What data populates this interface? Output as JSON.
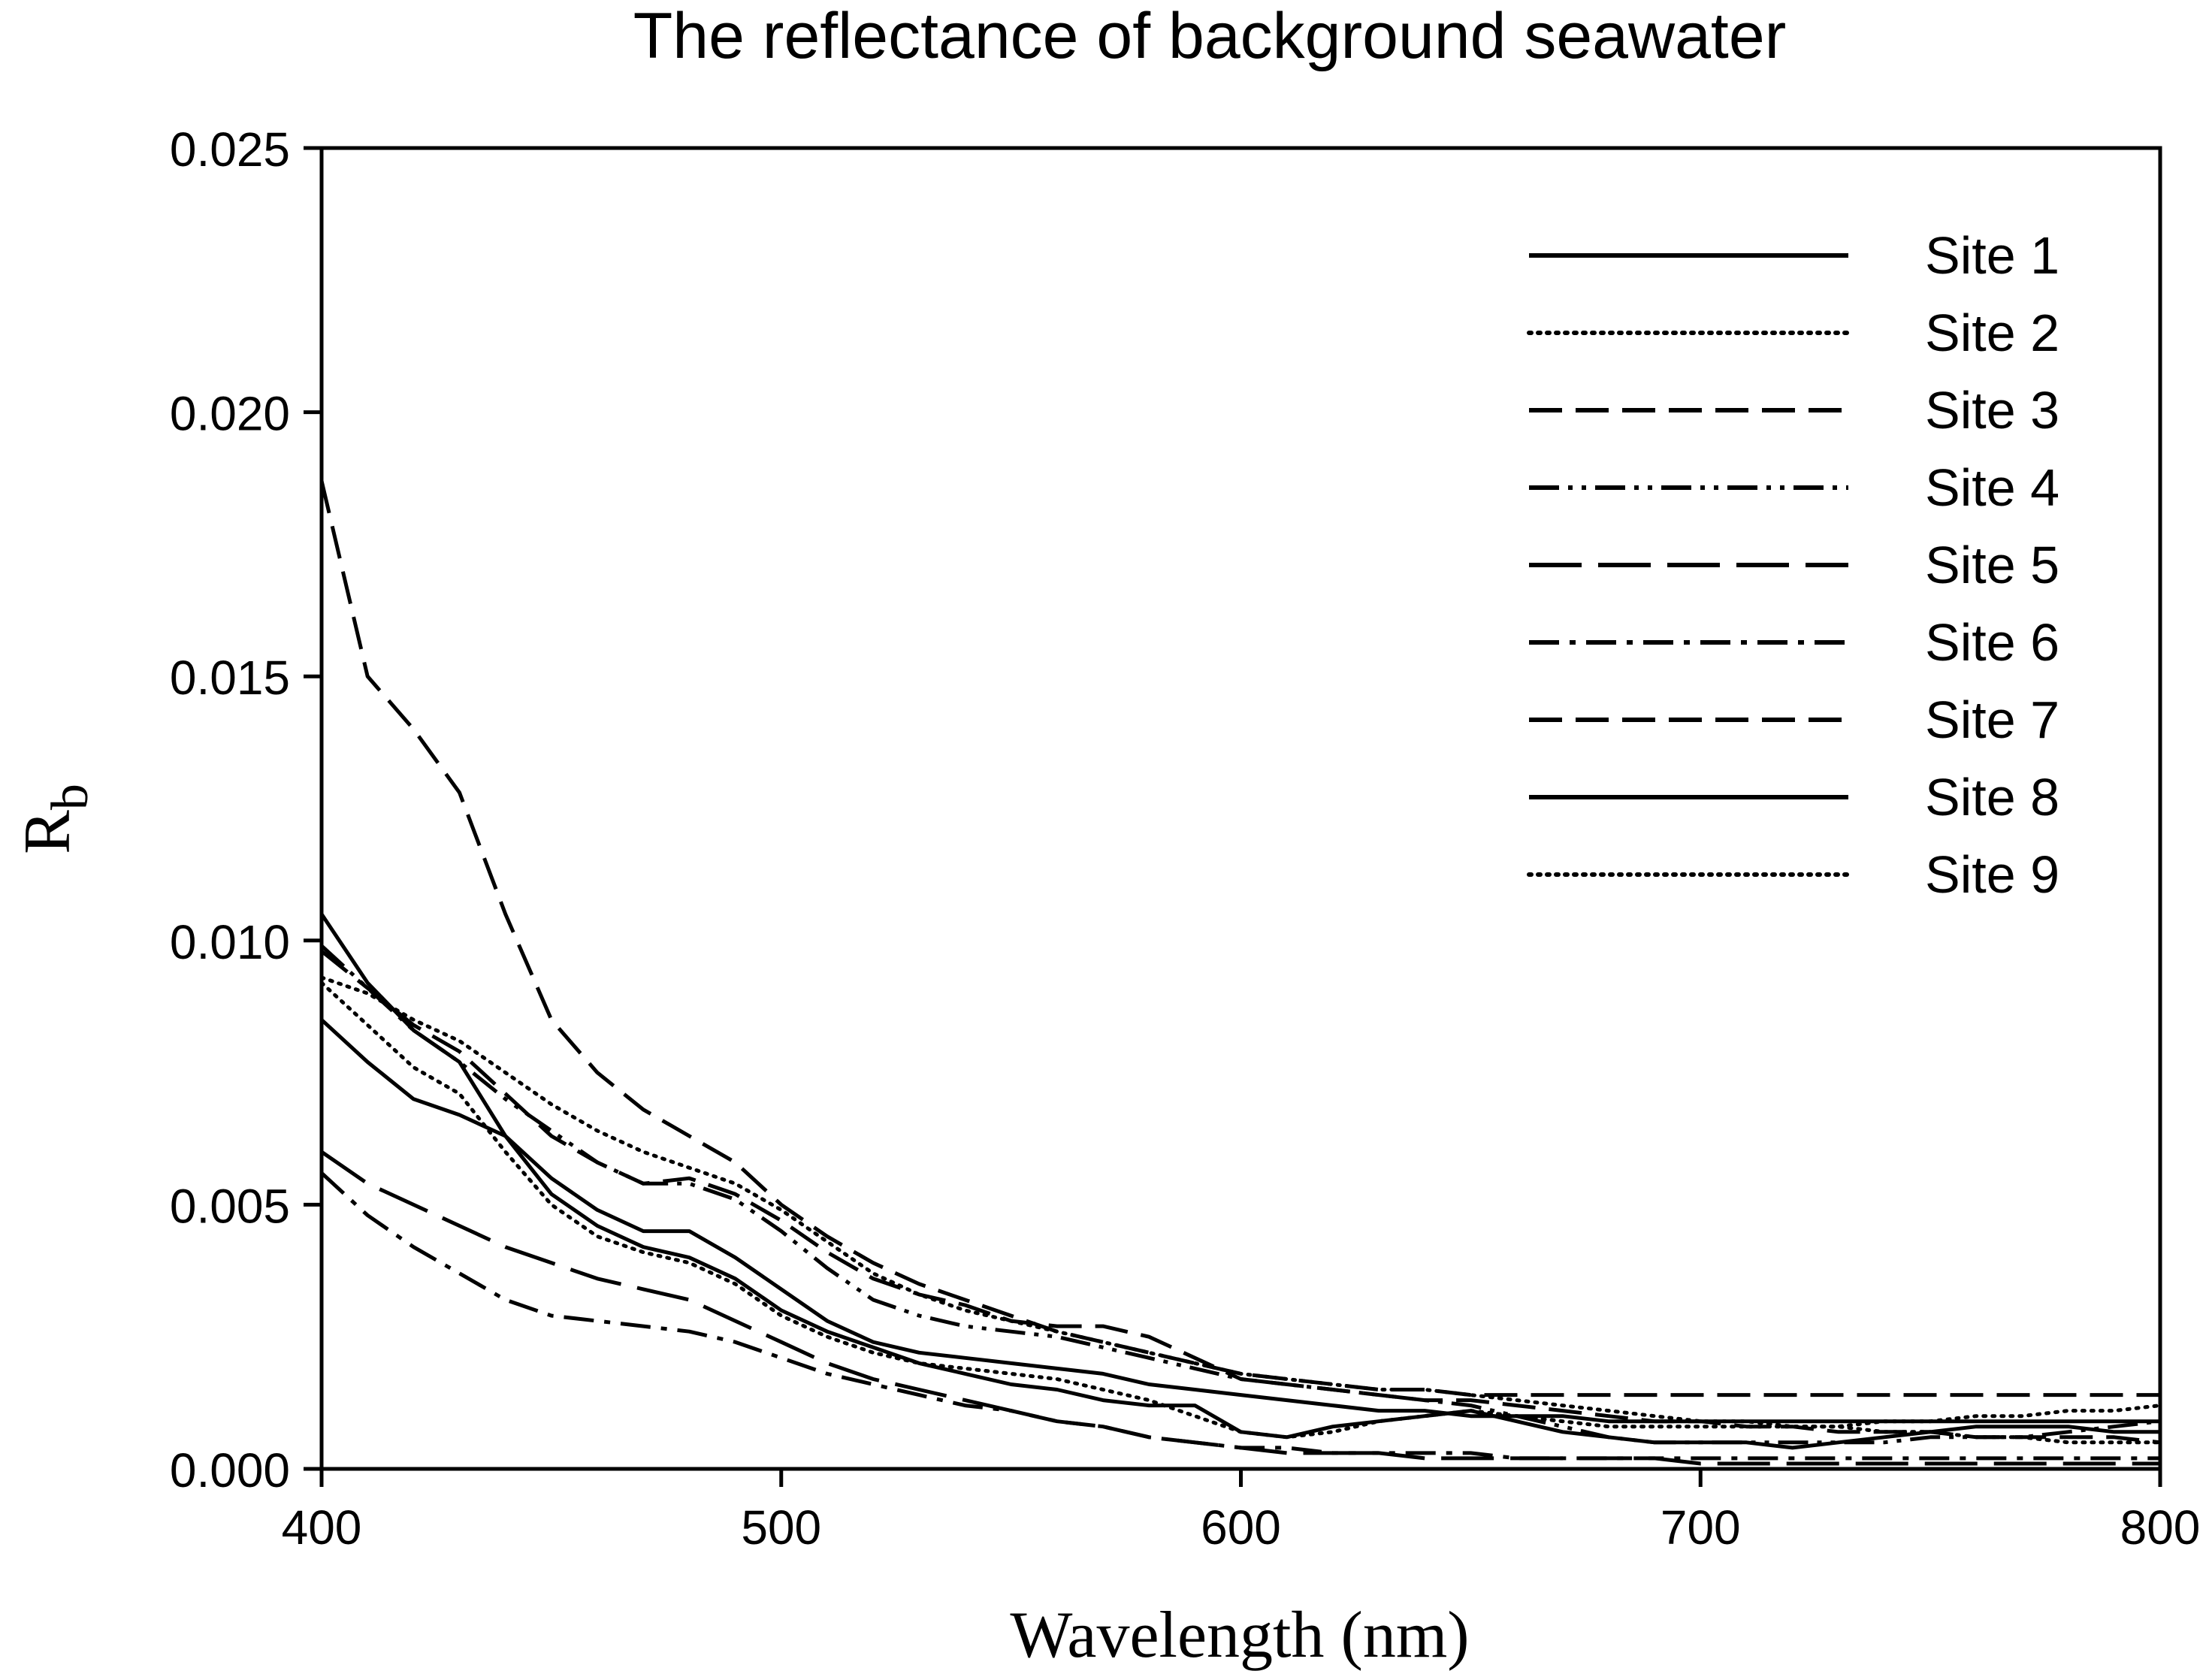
{
  "chart_data": {
    "type": "line",
    "title": "The reflectance of background seawater",
    "xlabel": "Wavelength (nm)",
    "ylabel_main": "R",
    "ylabel_sub": "b",
    "xlim": [
      400,
      800
    ],
    "ylim": [
      0,
      0.025
    ],
    "xticks": [
      400,
      500,
      600,
      700,
      800
    ],
    "xtick_labels": [
      "400",
      "500",
      "600",
      "700",
      "800"
    ],
    "yticks": [
      0,
      0.005,
      0.01,
      0.015,
      0.02,
      0.025
    ],
    "ytick_labels": [
      "0.000",
      "0.005",
      "0.010",
      "0.015",
      "0.020",
      "0.025"
    ],
    "grid": false,
    "legend_position": "top-right",
    "line_color": "#000000",
    "x": [
      400,
      410,
      420,
      430,
      440,
      450,
      460,
      470,
      480,
      490,
      500,
      510,
      520,
      530,
      540,
      550,
      560,
      570,
      580,
      590,
      600,
      610,
      620,
      630,
      640,
      650,
      660,
      670,
      680,
      690,
      700,
      710,
      720,
      730,
      740,
      750,
      760,
      770,
      780,
      790,
      800
    ],
    "series": [
      {
        "name": "Site 1",
        "style": "solid",
        "values": [
          0.0105,
          0.0092,
          0.0083,
          0.0077,
          0.0063,
          0.0055,
          0.0049,
          0.0045,
          0.0045,
          0.004,
          0.0034,
          0.0028,
          0.0024,
          0.0022,
          0.0021,
          0.002,
          0.0019,
          0.0018,
          0.0016,
          0.0015,
          0.0014,
          0.0013,
          0.0012,
          0.0011,
          0.0011,
          0.001,
          0.001,
          0.001,
          0.0009,
          0.0009,
          0.0009,
          0.0009,
          0.0009,
          0.0009,
          0.0009,
          0.0009,
          0.0009,
          0.0009,
          0.0009,
          0.0009,
          0.0009
        ]
      },
      {
        "name": "Site 2",
        "style": "dotted",
        "values": [
          0.0093,
          0.009,
          0.0085,
          0.0081,
          0.0075,
          0.0069,
          0.0064,
          0.006,
          0.0057,
          0.0054,
          0.0049,
          0.0043,
          0.0037,
          0.0033,
          0.003,
          0.0028,
          0.0026,
          0.0024,
          0.0022,
          0.002,
          0.0018,
          0.0017,
          0.0016,
          0.0015,
          0.0015,
          0.0014,
          0.0013,
          0.0012,
          0.0011,
          0.001,
          0.0009,
          0.0009,
          0.0008,
          0.0008,
          0.0007,
          0.0007,
          0.0006,
          0.0006,
          0.0005,
          0.0005,
          0.0005
        ]
      },
      {
        "name": "Site 3",
        "style": "dash",
        "values": [
          0.0187,
          0.015,
          0.014,
          0.0128,
          0.0105,
          0.0085,
          0.0075,
          0.0068,
          0.0063,
          0.0058,
          0.005,
          0.0044,
          0.0039,
          0.0035,
          0.0032,
          0.0029,
          0.0026,
          0.0024,
          0.0022,
          0.002,
          0.0018,
          0.0017,
          0.0016,
          0.0015,
          0.0015,
          0.0014,
          0.0014,
          0.0014,
          0.0014,
          0.0014,
          0.0014,
          0.0014,
          0.0014,
          0.0014,
          0.0014,
          0.0014,
          0.0014,
          0.0014,
          0.0014,
          0.0014,
          0.0014
        ]
      },
      {
        "name": "Site 4",
        "style": "dash-dot-dot",
        "values": [
          0.0099,
          0.0091,
          0.0083,
          0.0077,
          0.007,
          0.0064,
          0.0058,
          0.0054,
          0.0054,
          0.0051,
          0.0045,
          0.0038,
          0.0032,
          0.0029,
          0.0027,
          0.0026,
          0.0025,
          0.0023,
          0.0021,
          0.0019,
          0.0017,
          0.0016,
          0.0015,
          0.0014,
          0.0013,
          0.0012,
          0.001,
          0.0008,
          0.0006,
          0.0005,
          0.0005,
          0.0005,
          0.0005,
          0.0005,
          0.0005,
          0.0006,
          0.0006,
          0.0006,
          0.0007,
          0.0008,
          0.0009
        ]
      },
      {
        "name": "Site 5",
        "style": "long-dash",
        "values": [
          0.006,
          0.0054,
          0.005,
          0.0046,
          0.0042,
          0.0039,
          0.0036,
          0.0034,
          0.0032,
          0.0028,
          0.0024,
          0.002,
          0.0017,
          0.0015,
          0.0013,
          0.0011,
          0.0009,
          0.0008,
          0.0006,
          0.0005,
          0.0004,
          0.0003,
          0.0003,
          0.0003,
          0.0002,
          0.0002,
          0.0002,
          0.0002,
          0.0002,
          0.0002,
          0.0001,
          0.0001,
          0.0001,
          0.0001,
          0.0001,
          0.0001,
          0.0001,
          0.0001,
          0.0001,
          0.0001,
          0.0001
        ]
      },
      {
        "name": "Site 6",
        "style": "dash-dot",
        "values": [
          0.0056,
          0.0048,
          0.0042,
          0.0037,
          0.0032,
          0.0029,
          0.0028,
          0.0027,
          0.0026,
          0.0024,
          0.0021,
          0.0018,
          0.0016,
          0.0014,
          0.0012,
          0.0011,
          0.0009,
          0.0008,
          0.0006,
          0.0005,
          0.0004,
          0.0004,
          0.0003,
          0.0003,
          0.0003,
          0.0003,
          0.0002,
          0.0002,
          0.0002,
          0.0002,
          0.0002,
          0.0002,
          0.0002,
          0.0002,
          0.0002,
          0.0002,
          0.0002,
          0.0002,
          0.0002,
          0.0002,
          0.0002
        ]
      },
      {
        "name": "Site 7",
        "style": "dash",
        "values": [
          0.0098,
          0.0091,
          0.0084,
          0.0079,
          0.0071,
          0.0063,
          0.0058,
          0.0054,
          0.0055,
          0.0052,
          0.0047,
          0.0041,
          0.0036,
          0.0033,
          0.0031,
          0.0028,
          0.0027,
          0.0027,
          0.0025,
          0.0021,
          0.0017,
          0.0016,
          0.0015,
          0.0014,
          0.0013,
          0.0013,
          0.0012,
          0.0011,
          0.001,
          0.0009,
          0.0009,
          0.0008,
          0.0008,
          0.0007,
          0.0007,
          0.0007,
          0.0006,
          0.0006,
          0.0006,
          0.0006,
          0.0005
        ]
      },
      {
        "name": "Site 8",
        "style": "solid",
        "values": [
          0.0085,
          0.0077,
          0.007,
          0.0067,
          0.0063,
          0.0052,
          0.0046,
          0.0042,
          0.004,
          0.0036,
          0.003,
          0.0026,
          0.0023,
          0.002,
          0.0018,
          0.0016,
          0.0015,
          0.0013,
          0.0012,
          0.0012,
          0.0007,
          0.0006,
          0.0008,
          0.0009,
          0.001,
          0.0011,
          0.0009,
          0.0007,
          0.0006,
          0.0005,
          0.0005,
          0.0005,
          0.0004,
          0.0005,
          0.0006,
          0.0007,
          0.0008,
          0.0008,
          0.0008,
          0.0007,
          0.0007
        ]
      },
      {
        "name": "Site 9",
        "style": "dotted",
        "values": [
          0.0092,
          0.0084,
          0.0076,
          0.0071,
          0.006,
          0.005,
          0.0044,
          0.0041,
          0.0039,
          0.0035,
          0.0029,
          0.0025,
          0.0022,
          0.002,
          0.0019,
          0.0018,
          0.0017,
          0.0015,
          0.0013,
          0.001,
          0.0007,
          0.0006,
          0.0007,
          0.0009,
          0.001,
          0.0011,
          0.001,
          0.0009,
          0.0008,
          0.0008,
          0.0008,
          0.0008,
          0.0008,
          0.0008,
          0.0009,
          0.0009,
          0.001,
          0.001,
          0.0011,
          0.0011,
          0.0012
        ]
      }
    ]
  }
}
